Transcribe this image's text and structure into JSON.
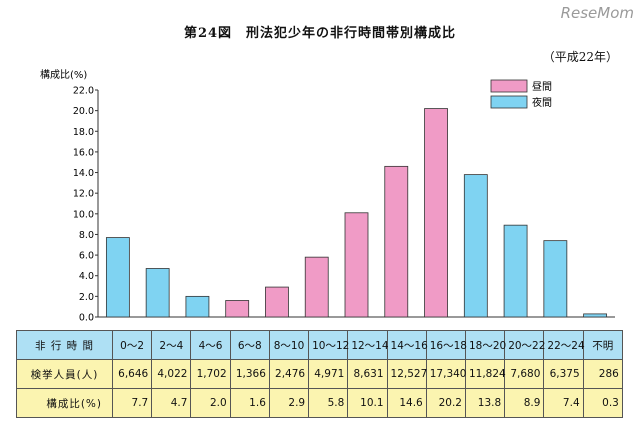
{
  "header": {
    "title": "第24図　刑法犯少年の非行時間帯別構成比",
    "period": "（平成22年）",
    "watermark": "ReseMom"
  },
  "colors": {
    "daytime": "#f09bc6",
    "night": "#7fd3f2",
    "bar_stroke": "#333333"
  },
  "chart_data": {
    "type": "bar",
    "ylabel": "構成比(%)",
    "ylim": [
      0,
      22
    ],
    "yticks": [
      "0.0",
      "2.0",
      "4.0",
      "6.0",
      "8.0",
      "10.0",
      "12.0",
      "14.0",
      "16.0",
      "18.0",
      "20.0",
      "22.0"
    ],
    "legend": {
      "placement": "top-right",
      "items": [
        {
          "label": "昼間",
          "series": "daytime"
        },
        {
          "label": "夜間",
          "series": "night"
        }
      ]
    },
    "categories": [
      "0～2",
      "2～4",
      "4～6",
      "6～8",
      "8～10",
      "10～12",
      "12～14",
      "14～16",
      "16～18",
      "18～20",
      "20～22",
      "22～24",
      "不明"
    ],
    "values": [
      7.7,
      4.7,
      2.0,
      1.6,
      2.9,
      5.8,
      10.1,
      14.6,
      20.2,
      13.8,
      8.9,
      7.4,
      0.3
    ],
    "period_of_bar": [
      "night",
      "night",
      "night",
      "daytime",
      "daytime",
      "daytime",
      "daytime",
      "daytime",
      "daytime",
      "night",
      "night",
      "night",
      "night"
    ]
  },
  "table": {
    "header_label": "非 行 時 間",
    "count_label": "検挙人員(人)",
    "pct_label": "構成比(%)",
    "counts": [
      "6,646",
      "4,022",
      "1,702",
      "1,366",
      "2,476",
      "4,971",
      "8,631",
      "12,527",
      "17,340",
      "11,824",
      "7,680",
      "6,375",
      "286"
    ],
    "pcts": [
      "7.7",
      "4.7",
      "2.0",
      "1.6",
      "2.9",
      "5.8",
      "10.1",
      "14.6",
      "20.2",
      "13.8",
      "8.9",
      "7.4",
      "0.3"
    ]
  }
}
